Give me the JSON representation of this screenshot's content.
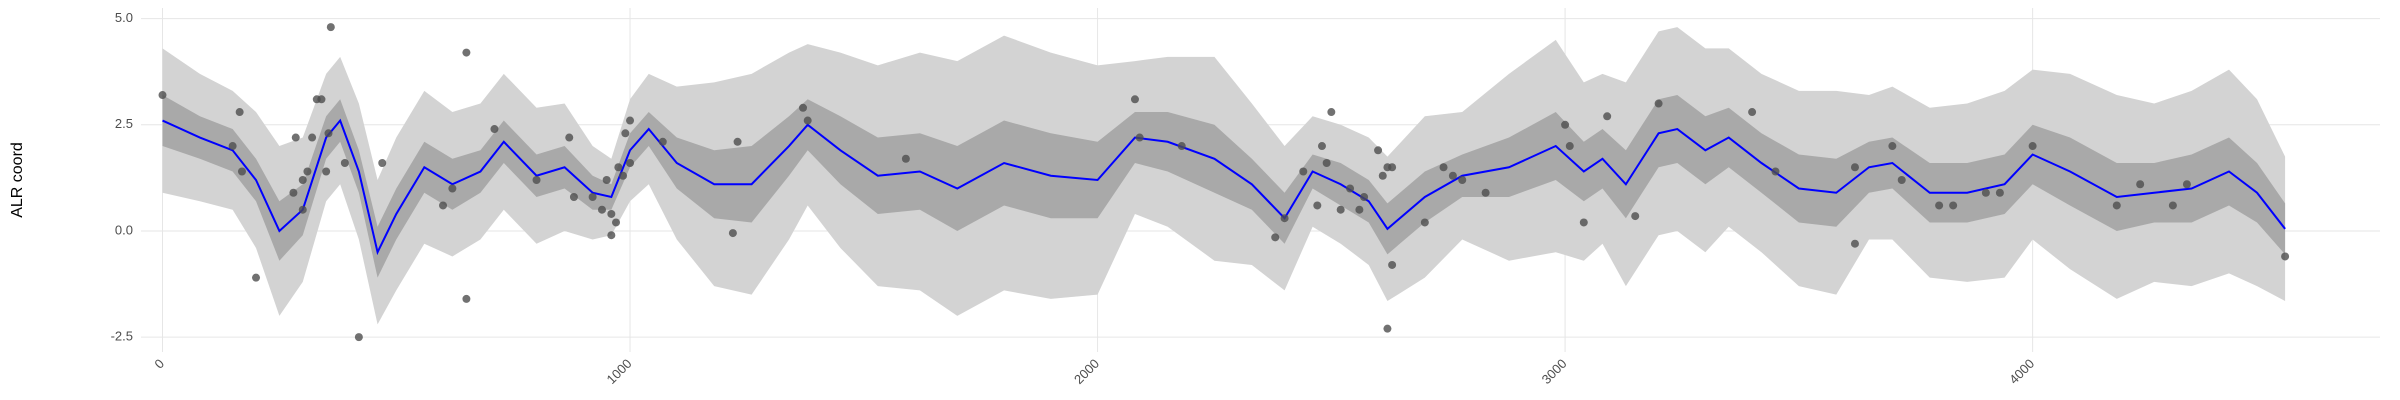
{
  "chart_data": {
    "type": "line",
    "ylabel": "ALR coord",
    "x": [
      0,
      80,
      150,
      200,
      250,
      300,
      350,
      380,
      420,
      460,
      500,
      560,
      620,
      680,
      730,
      800,
      860,
      920,
      960,
      1000,
      1040,
      1100,
      1180,
      1260,
      1340,
      1380,
      1450,
      1530,
      1620,
      1700,
      1800,
      1900,
      2000,
      2080,
      2150,
      2250,
      2330,
      2400,
      2460,
      2520,
      2580,
      2620,
      2700,
      2780,
      2880,
      2980,
      3040,
      3080,
      3130,
      3200,
      3240,
      3300,
      3350,
      3420,
      3500,
      3580,
      3650,
      3700,
      3780,
      3860,
      3940,
      4000,
      4080,
      4180,
      4260,
      4340,
      4420,
      4480,
      4540
    ],
    "bands": [
      {
        "color": "#d3d3d3",
        "lower": [
          0.9,
          0.7,
          0.5,
          -0.4,
          -2.0,
          -1.2,
          0.7,
          1.1,
          -0.2,
          -2.2,
          -1.4,
          -0.3,
          -0.6,
          -0.2,
          0.5,
          -0.3,
          0.0,
          -0.2,
          -0.1,
          0.7,
          1.1,
          -0.2,
          -1.3,
          -1.5,
          -0.2,
          0.6,
          -0.4,
          -1.3,
          -1.4,
          -2.0,
          -1.4,
          -1.6,
          -1.5,
          0.4,
          0.1,
          -0.7,
          -0.8,
          -1.4,
          0.1,
          -0.3,
          -0.8,
          -1.65,
          -1.1,
          -0.2,
          -0.7,
          -0.5,
          -0.7,
          -0.3,
          -1.3,
          -0.1,
          0.0,
          -0.5,
          0.1,
          -0.5,
          -1.3,
          -1.5,
          -0.2,
          -0.2,
          -1.1,
          -1.2,
          -1.1,
          -0.2,
          -0.9,
          -1.6,
          -1.2,
          -1.3,
          -1.0,
          -1.3,
          -1.65
        ],
        "upper": [
          4.3,
          3.7,
          3.3,
          2.8,
          2.0,
          2.2,
          3.7,
          4.1,
          3.0,
          1.2,
          2.2,
          3.3,
          2.8,
          3.0,
          3.7,
          2.9,
          3.0,
          2.0,
          1.7,
          3.1,
          3.7,
          3.4,
          3.5,
          3.7,
          4.2,
          4.4,
          4.2,
          3.9,
          4.2,
          4.0,
          4.6,
          4.2,
          3.9,
          4.0,
          4.1,
          4.1,
          3.0,
          2.0,
          2.7,
          2.5,
          2.2,
          1.75,
          2.7,
          2.8,
          3.7,
          4.5,
          3.5,
          3.7,
          3.5,
          4.7,
          4.8,
          4.3,
          4.3,
          3.7,
          3.3,
          3.3,
          3.2,
          3.4,
          2.9,
          3.0,
          3.3,
          3.8,
          3.7,
          3.2,
          3.0,
          3.3,
          3.8,
          3.1,
          1.75
        ]
      },
      {
        "color": "#a9a9a9",
        "lower": [
          2.0,
          1.7,
          1.4,
          0.7,
          -0.7,
          -0.1,
          1.7,
          2.1,
          0.9,
          -1.1,
          -0.2,
          0.9,
          0.5,
          0.9,
          1.6,
          0.8,
          1.0,
          0.5,
          0.5,
          1.5,
          2.0,
          1.0,
          0.3,
          0.2,
          1.3,
          1.9,
          1.1,
          0.4,
          0.5,
          0.0,
          0.6,
          0.3,
          0.3,
          1.6,
          1.4,
          0.9,
          0.5,
          -0.3,
          1.0,
          0.6,
          0.2,
          -0.55,
          0.2,
          0.8,
          0.8,
          1.2,
          0.7,
          1.0,
          0.3,
          1.5,
          1.6,
          1.1,
          1.5,
          0.9,
          0.2,
          0.1,
          0.9,
          1.0,
          0.2,
          0.2,
          0.4,
          1.1,
          0.6,
          0.0,
          0.2,
          0.2,
          0.6,
          0.2,
          -0.55
        ],
        "upper": [
          3.2,
          2.7,
          2.4,
          1.7,
          0.7,
          1.1,
          2.7,
          3.1,
          1.9,
          0.1,
          1.0,
          2.1,
          1.7,
          1.9,
          2.6,
          1.8,
          2.0,
          1.3,
          1.1,
          2.3,
          2.8,
          2.2,
          1.9,
          2.0,
          2.7,
          3.1,
          2.7,
          2.2,
          2.3,
          2.0,
          2.6,
          2.3,
          2.1,
          2.8,
          2.8,
          2.5,
          1.7,
          0.9,
          1.8,
          1.6,
          1.2,
          0.65,
          1.4,
          1.8,
          2.2,
          2.8,
          2.1,
          2.4,
          1.9,
          3.1,
          3.2,
          2.7,
          2.9,
          2.3,
          1.8,
          1.7,
          2.1,
          2.2,
          1.6,
          1.6,
          1.8,
          2.5,
          2.2,
          1.6,
          1.6,
          1.8,
          2.2,
          1.6,
          0.65
        ]
      }
    ],
    "series": [
      {
        "color": "#0000ff",
        "values": [
          2.6,
          2.2,
          1.9,
          1.2,
          0.0,
          0.5,
          2.2,
          2.6,
          1.4,
          -0.5,
          0.4,
          1.5,
          1.1,
          1.4,
          2.1,
          1.3,
          1.5,
          0.9,
          0.8,
          1.9,
          2.4,
          1.6,
          1.1,
          1.1,
          2.0,
          2.5,
          1.9,
          1.3,
          1.4,
          1.0,
          1.6,
          1.3,
          1.2,
          2.2,
          2.1,
          1.7,
          1.1,
          0.3,
          1.4,
          1.1,
          0.7,
          0.05,
          0.8,
          1.3,
          1.5,
          2.0,
          1.4,
          1.7,
          1.1,
          2.3,
          2.4,
          1.9,
          2.2,
          1.6,
          1.0,
          0.9,
          1.5,
          1.6,
          0.9,
          0.9,
          1.1,
          1.8,
          1.4,
          0.8,
          0.9,
          1.0,
          1.4,
          0.9,
          0.05
        ]
      }
    ],
    "points": {
      "color": "#4d4d4d",
      "x": [
        0,
        150,
        165,
        170,
        200,
        280,
        285,
        300,
        310,
        320,
        330,
        340,
        355,
        360,
        350,
        300,
        390,
        420,
        470,
        600,
        620,
        650,
        650,
        710,
        800,
        870,
        880,
        920,
        940,
        950,
        960,
        960,
        970,
        975,
        985,
        990,
        1000,
        1000,
        1070,
        1220,
        1230,
        1370,
        1380,
        1590,
        2080,
        2090,
        2180,
        2380,
        2400,
        2440,
        2470,
        2480,
        2490,
        2500,
        2520,
        2540,
        2560,
        2570,
        2600,
        2610,
        2620,
        2630,
        2620,
        2630,
        2700,
        2740,
        2760,
        2780,
        2830,
        3000,
        3010,
        3040,
        3090,
        3150,
        3200,
        3400,
        3450,
        3620,
        3620,
        3700,
        3720,
        3800,
        3830,
        3900,
        3930,
        4000,
        4180,
        4230,
        4300,
        4330,
        4540
      ],
      "values": [
        3.2,
        2.0,
        2.8,
        1.4,
        -1.1,
        0.9,
        2.2,
        1.2,
        1.4,
        2.2,
        3.1,
        3.1,
        2.3,
        4.8,
        1.4,
        0.5,
        1.6,
        -2.5,
        1.6,
        0.6,
        1.0,
        4.2,
        -1.6,
        2.4,
        1.2,
        2.2,
        0.8,
        0.8,
        0.5,
        1.2,
        0.4,
        -0.1,
        0.2,
        1.5,
        1.3,
        2.3,
        2.6,
        1.6,
        2.1,
        -0.05,
        2.1,
        2.9,
        2.6,
        1.7,
        3.1,
        2.2,
        2.0,
        -0.15,
        0.3,
        1.4,
        0.6,
        2.0,
        1.6,
        2.8,
        0.5,
        1.0,
        0.5,
        0.8,
        1.9,
        1.3,
        1.5,
        1.5,
        -2.3,
        -0.8,
        0.2,
        1.5,
        1.3,
        1.2,
        0.9,
        2.5,
        2.0,
        0.2,
        2.7,
        0.35,
        3.0,
        2.8,
        1.4,
        -0.3,
        1.5,
        2.0,
        1.2,
        0.6,
        0.6,
        0.9,
        0.9,
        2.0,
        0.6,
        1.1,
        0.6,
        1.1,
        -0.6
      ]
    },
    "xlim": [
      -46,
      4743
    ],
    "ylim": [
      -2.85,
      5.25
    ],
    "xticks": [
      0,
      1000,
      2000,
      3000,
      4000
    ],
    "yticks": [
      {
        "value": -2.5,
        "label": "-2.5"
      },
      {
        "value": 0,
        "label": "0.0"
      },
      {
        "value": 2.5,
        "label": "2.5"
      },
      {
        "value": 5,
        "label": "5.0"
      }
    ],
    "grid": true
  }
}
